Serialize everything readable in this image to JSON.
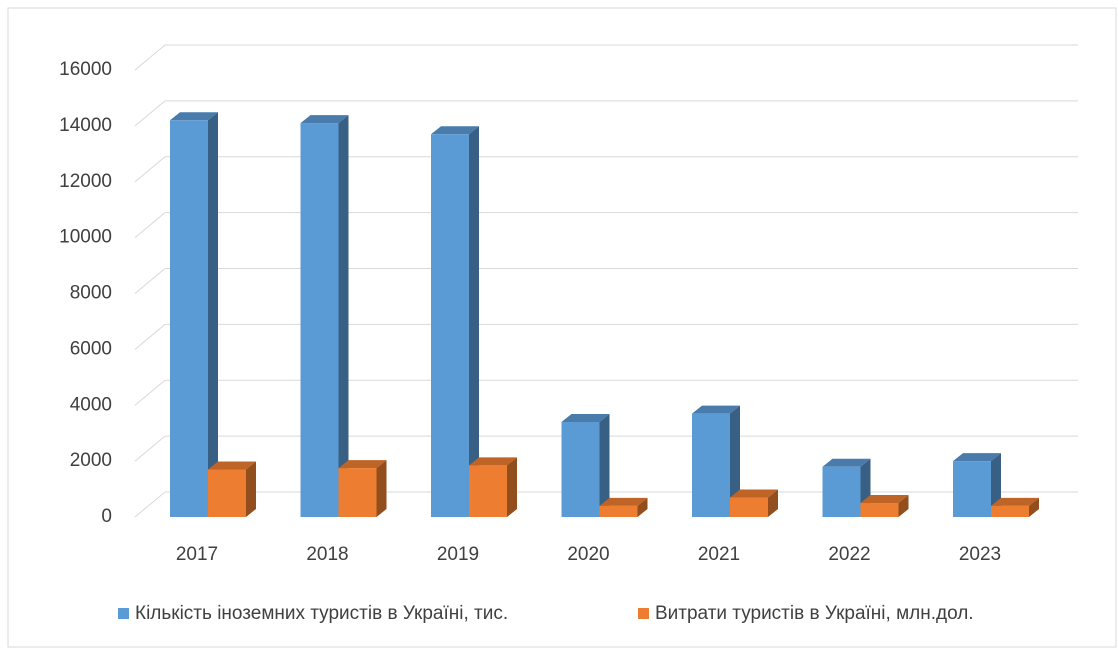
{
  "chart_data": {
    "type": "bar3d",
    "categories": [
      "2017",
      "2018",
      "2019",
      "2020",
      "2021",
      "2022",
      "2023"
    ],
    "series": [
      {
        "name": "Кількість іноземних туристів в Україні, тис.",
        "color": "#5b9bd5",
        "values": [
          14200,
          14100,
          13700,
          3400,
          3700,
          1800,
          2000
        ]
      },
      {
        "name": "Витрати туристів в Україні, млн.дол.",
        "color": "#ed7d31",
        "values": [
          1700,
          1750,
          1850,
          400,
          700,
          500,
          400
        ]
      }
    ],
    "ylim": [
      0,
      16000
    ],
    "yticks": [
      0,
      2000,
      4000,
      6000,
      8000,
      10000,
      12000,
      14000,
      16000
    ],
    "grid": true
  }
}
